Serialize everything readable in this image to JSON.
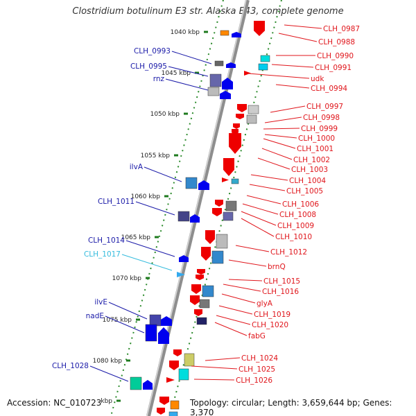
{
  "title": "Clostridium botulinum E3 str. Alaska E43, complete genome",
  "footer": {
    "accession": "Accession: NC_010723",
    "topology": "Topology: circular; Length: 3,659,644 bp; Genes: 3,370"
  },
  "colors": {
    "forward_label": "#1a1aa8",
    "reverse_label": "#e0151b",
    "highlight_label": "#33bbdd",
    "backbone": "#9a9a9a",
    "tick": "#1e7a1e"
  },
  "scale": {
    "ticks": [
      "1040 kbp",
      "1045 kbp",
      "1050 kbp",
      "1055 kbp",
      "1060 kbp",
      "1065 kbp",
      "1070 kbp",
      "1075 kbp",
      "1080 kbp",
      "kbp"
    ]
  },
  "left_genes": [
    "CLH_0993",
    "CLH_0995",
    "rnz",
    "ilvA",
    "CLH_1011",
    "CLH_1014",
    "CLH_1017",
    "ilvE",
    "nadE",
    "CLH_1028"
  ],
  "right_genes": [
    "CLH_0987",
    "CLH_0988",
    "CLH_0990",
    "CLH_0991",
    "udk",
    "CLH_0994",
    "CLH_0997",
    "CLH_0998",
    "CLH_0999",
    "CLH_1000",
    "CLH_1001",
    "CLH_1002",
    "CLH_1003",
    "CLH_1004",
    "CLH_1005",
    "CLH_1006",
    "CLH_1008",
    "CLH_1009",
    "CLH_1010",
    "CLH_1012",
    "brnQ",
    "CLH_1015",
    "CLH_1016",
    "glyA",
    "CLH_1019",
    "CLH_1020",
    "fabG",
    "CLH_1024",
    "CLH_1025",
    "CLH_1026"
  ]
}
